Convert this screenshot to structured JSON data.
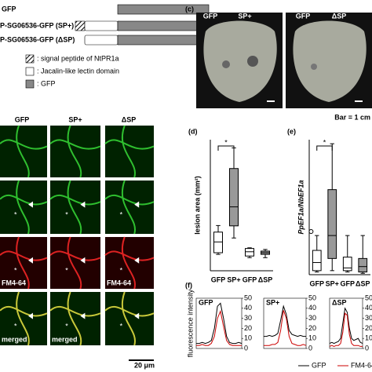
{
  "constructs": {
    "rows": [
      "GFP",
      "P-SG06536-GFP (SP+)",
      "P-SG06536-GFP (ΔSP)"
    ]
  },
  "legend": [
    ": signal peptide of NtPR1a",
    ": Jacalin-like lectin domain",
    ": GFP"
  ],
  "leaf": {
    "label": "(c)",
    "left": [
      "GFP",
      "SP+"
    ],
    "right": [
      "GFP",
      "ΔSP"
    ],
    "scale": "Bar = 1 cm"
  },
  "micro": {
    "columns": [
      "GFP",
      "SP+",
      "ΔSP"
    ],
    "fm4": "FM4-64",
    "merged": "merged",
    "marker": "*",
    "scale": "20 μm"
  },
  "lesion": {
    "type": "box",
    "label": "(d)",
    "ylabel": "lesion area (mm²)",
    "categories": [
      "GFP",
      "SP+",
      "GFP",
      "ΔSP"
    ],
    "fills": [
      "#ffffff",
      "#999999",
      "#ffffff",
      "#999999"
    ],
    "ylim": [
      0,
      400
    ],
    "significance": "*",
    "boxes": [
      {
        "min": 50,
        "q1": 55,
        "median": 88,
        "q3": 118,
        "max": 138
      },
      {
        "min": 100,
        "q1": 137,
        "median": 195,
        "q3": 312,
        "max": 375
      },
      {
        "min": 40,
        "q1": 45,
        "median": 58,
        "q3": 68,
        "max": 70
      },
      {
        "min": 40,
        "q1": 50,
        "median": 55,
        "q3": 60,
        "max": 65
      }
    ]
  },
  "expression": {
    "type": "box",
    "label": "(e)",
    "ylabel": "PpEF1a/NbEF1a",
    "categories": [
      "GFP",
      "SP+",
      "GFP",
      "ΔSP"
    ],
    "fills": [
      "#ffffff",
      "#999999",
      "#ffffff",
      "#999999"
    ],
    "ylim": [
      0,
      1
    ],
    "significance": "*",
    "boxes": [
      {
        "min": 0.02,
        "q1": 0.03,
        "median": 0.09,
        "q3": 0.18,
        "max": 0.29,
        "outlier": 0.32
      },
      {
        "min": 0.03,
        "q1": 0.12,
        "median": 0.29,
        "q3": 0.63,
        "max": 0.97
      },
      {
        "min": 0.02,
        "q1": 0.03,
        "median": 0.05,
        "q3": 0.13,
        "max": 0.29
      },
      {
        "min": 0.01,
        "q1": 0.02,
        "median": 0.06,
        "q3": 0.12,
        "max": 0.29
      }
    ]
  },
  "profile": {
    "type": "line",
    "label": "(f)",
    "ylabel": "fluorescence intensity",
    "ylim": [
      0,
      50
    ],
    "yticks": [
      0,
      10,
      20,
      30,
      40,
      50
    ],
    "series_names": [
      "GFP",
      "FM4-64"
    ],
    "colors": [
      "#000000",
      "#cc0000"
    ],
    "panels": [
      {
        "title": "GFP",
        "series": [
          [
            5,
            5,
            6,
            5,
            6,
            8,
            20,
            42,
            45,
            30,
            12,
            6,
            5,
            5,
            6,
            5
          ],
          [
            3,
            3,
            4,
            3,
            3,
            5,
            12,
            30,
            37,
            22,
            8,
            4,
            3,
            3,
            3,
            3
          ]
        ]
      },
      {
        "title": "SP+",
        "series": [
          [
            12,
            12,
            13,
            12,
            13,
            15,
            28,
            42,
            34,
            18,
            14,
            13,
            12,
            13,
            12,
            12
          ],
          [
            3,
            3,
            3,
            4,
            4,
            6,
            18,
            38,
            30,
            12,
            5,
            4,
            3,
            3,
            4,
            3
          ]
        ]
      },
      {
        "title": "ΔSP",
        "series": [
          [
            5,
            6,
            5,
            6,
            7,
            10,
            25,
            40,
            36,
            20,
            10,
            8,
            9,
            10,
            6,
            5
          ],
          [
            2,
            3,
            2,
            3,
            3,
            5,
            16,
            35,
            33,
            14,
            5,
            3,
            3,
            3,
            2,
            2
          ]
        ]
      }
    ]
  }
}
